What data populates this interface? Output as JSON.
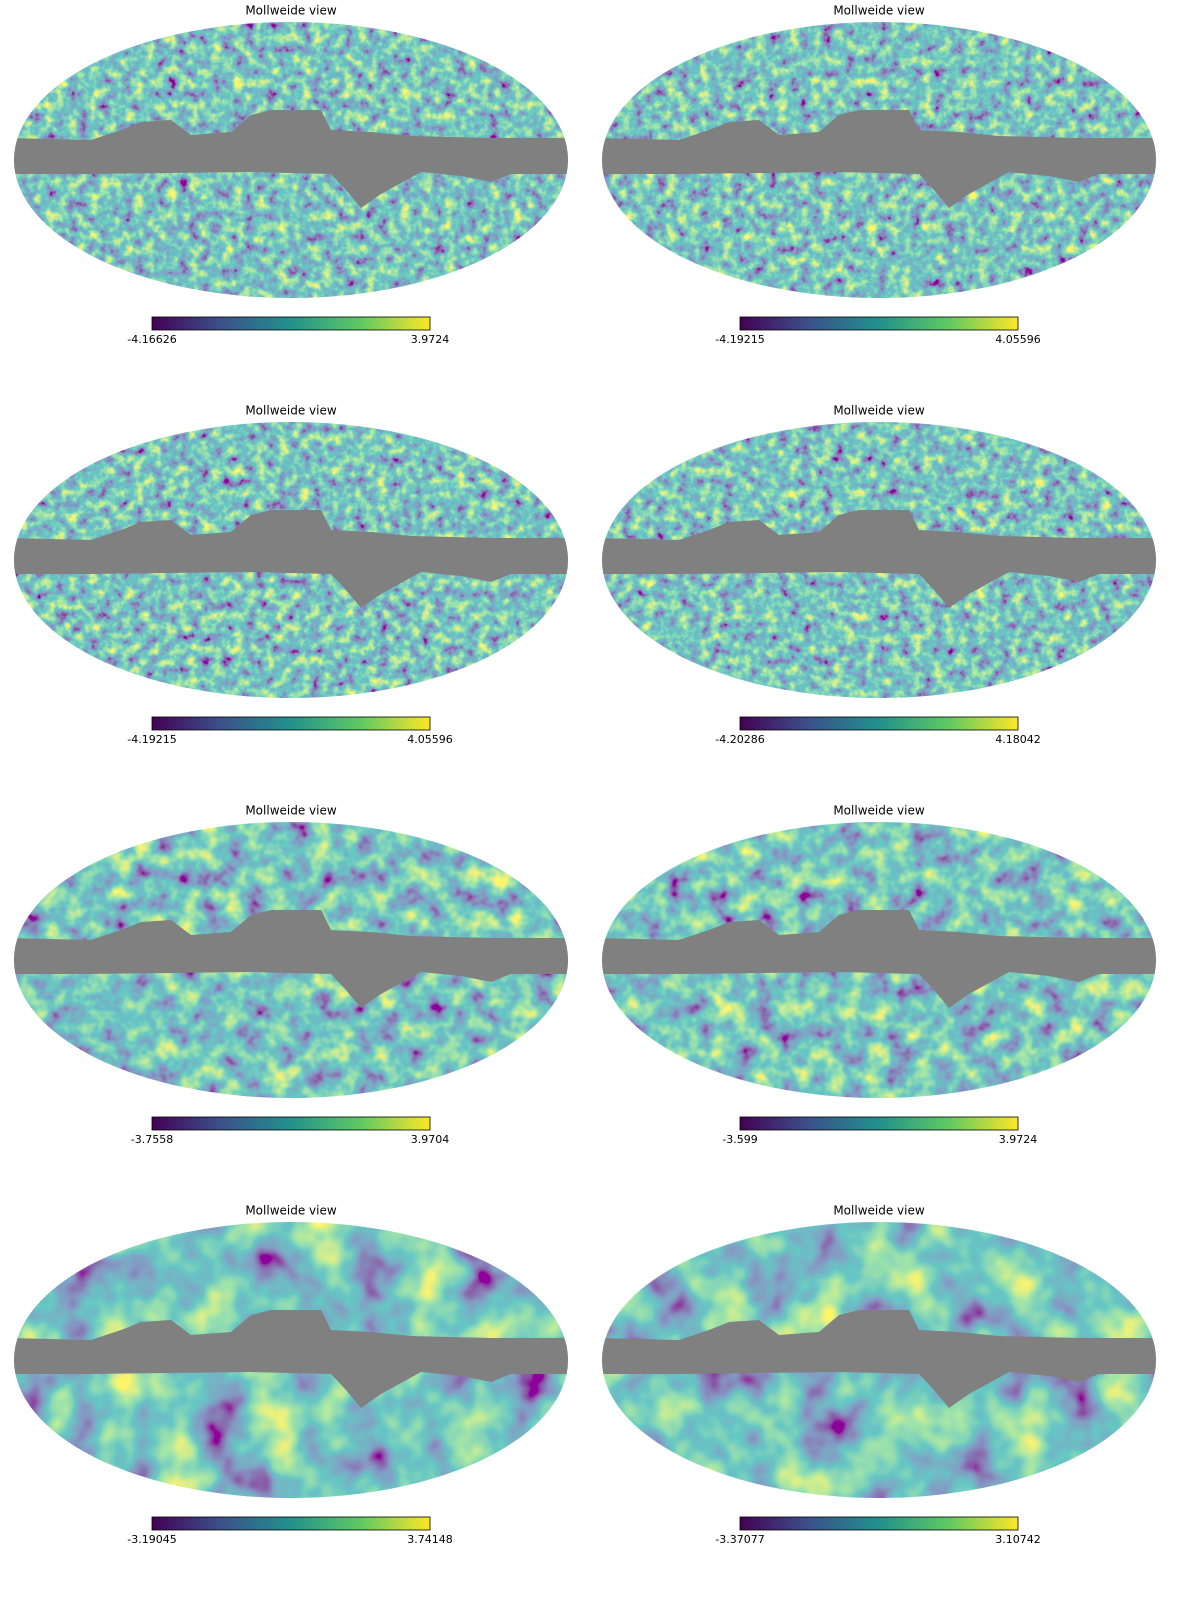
{
  "panels": [
    {
      "title": "Mollweide view",
      "colorbar": {
        "min": -4.16626,
        "max": 3.9724
      }
    },
    {
      "title": "Mollweide view",
      "colorbar": {
        "min": -4.19215,
        "max": 4.05596
      }
    },
    {
      "title": "Mollweide view",
      "colorbar": {
        "min": -4.19215,
        "max": 4.05596
      }
    },
    {
      "title": "Mollweide view",
      "colorbar": {
        "min": -4.20286,
        "max": 4.18042
      }
    },
    {
      "title": "Mollweide view",
      "colorbar": {
        "min": -3.7558,
        "max": 3.9704
      }
    },
    {
      "title": "Mollweide view",
      "colorbar": {
        "min": -3.599,
        "max": 3.9724
      }
    },
    {
      "title": "Mollweide view",
      "colorbar": {
        "min": -3.19045,
        "max": 3.74148
      }
    },
    {
      "title": "Mollweide view",
      "colorbar": {
        "min": -3.37077,
        "max": 3.10742
      }
    }
  ]
}
